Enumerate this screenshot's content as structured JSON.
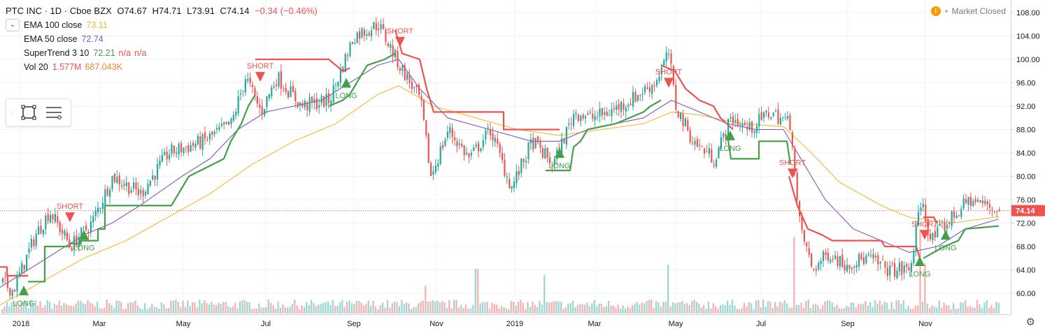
{
  "header": {
    "symbol": "PTC INC · 1D · Cboe BZX",
    "open": "O74.67",
    "high": "H74.71",
    "low": "L73.91",
    "close": "C74.14",
    "change": "−0.34 (−0.46%)"
  },
  "indicators": [
    {
      "name": "EMA 100 close",
      "values": [
        "73.11"
      ],
      "colors": [
        "#f5b931"
      ]
    },
    {
      "name": "EMA 50 close",
      "values": [
        "72.74"
      ],
      "colors": [
        "#7e57c2"
      ]
    },
    {
      "name": "SuperTrend 3 10",
      "values": [
        "72.21",
        "n/a",
        "n/a"
      ],
      "colors": [
        "#43a047",
        "#ef5350",
        "#ef5350"
      ]
    },
    {
      "name": "Vol 20",
      "values": [
        "1.577M",
        "687.043K"
      ],
      "colors": [
        "#ef5350",
        "#f5862f"
      ]
    }
  ],
  "status": {
    "alert": "!",
    "text": "Market Closed"
  },
  "icons": {
    "collapse": "chevron-down-icon",
    "rect": "rectangle-tool-icon",
    "lines": "lines-tool-icon",
    "settings": "gear-icon"
  },
  "chart_data": {
    "type": "candlestick",
    "x_ticks": [
      "2018",
      "Mar",
      "May",
      "Jul",
      "Sep",
      "Nov",
      "2019",
      "Mar",
      "May",
      "Jul",
      "Sep",
      "Nov"
    ],
    "y_ticks": [
      "108.00",
      "104.00",
      "100.00",
      "96.00",
      "92.00",
      "88.00",
      "84.00",
      "80.00",
      "76.00",
      "72.00",
      "68.00",
      "64.00",
      "60.00"
    ],
    "ylim": [
      57.5,
      109
    ],
    "last_price": "74.14",
    "last_price_value": 74.14,
    "colors": {
      "up": "#26a69a",
      "down": "#ef5350",
      "ema100": "#f5b931",
      "ema50": "#7e57c2",
      "st_up": "#43a047",
      "st_down": "#ef5350"
    },
    "price_path": [
      [
        0,
        62
      ],
      [
        18,
        60.5
      ],
      [
        50,
        70
      ],
      [
        70,
        74
      ],
      [
        100,
        68
      ],
      [
        130,
        72
      ],
      [
        160,
        80
      ],
      [
        200,
        77
      ],
      [
        240,
        84
      ],
      [
        290,
        86
      ],
      [
        330,
        89
      ],
      [
        350,
        97
      ],
      [
        372,
        91
      ],
      [
        395,
        97
      ],
      [
        430,
        92
      ],
      [
        470,
        93
      ],
      [
        505,
        104
      ],
      [
        540,
        106
      ],
      [
        570,
        99
      ],
      [
        600,
        93
      ],
      [
        615,
        80
      ],
      [
        640,
        88
      ],
      [
        670,
        83
      ],
      [
        700,
        88
      ],
      [
        730,
        78
      ],
      [
        760,
        86
      ],
      [
        790,
        82
      ],
      [
        820,
        91
      ],
      [
        845,
        90
      ],
      [
        870,
        91
      ],
      [
        900,
        93
      ],
      [
        935,
        96
      ],
      [
        955,
        101
      ],
      [
        965,
        92
      ],
      [
        990,
        86
      ],
      [
        1020,
        83
      ],
      [
        1045,
        90
      ],
      [
        1070,
        88
      ],
      [
        1100,
        91
      ],
      [
        1130,
        89
      ],
      [
        1140,
        73
      ],
      [
        1160,
        64
      ],
      [
        1185,
        67
      ],
      [
        1205,
        65
      ],
      [
        1240,
        66
      ],
      [
        1270,
        64
      ],
      [
        1300,
        64
      ],
      [
        1316,
        76
      ],
      [
        1330,
        69
      ],
      [
        1360,
        73
      ],
      [
        1385,
        76
      ],
      [
        1410,
        75
      ],
      [
        1428,
        74.1
      ]
    ],
    "ema50": [
      [
        0,
        61
      ],
      [
        40,
        64
      ],
      [
        80,
        67
      ],
      [
        120,
        70
      ],
      [
        160,
        72
      ],
      [
        200,
        75
      ],
      [
        260,
        80
      ],
      [
        300,
        83
      ],
      [
        340,
        88
      ],
      [
        380,
        91
      ],
      [
        420,
        92
      ],
      [
        460,
        93
      ],
      [
        500,
        96
      ],
      [
        540,
        99
      ],
      [
        570,
        100
      ],
      [
        600,
        95
      ],
      [
        640,
        90
      ],
      [
        700,
        88
      ],
      [
        760,
        86
      ],
      [
        800,
        86
      ],
      [
        840,
        88
      ],
      [
        880,
        89
      ],
      [
        920,
        90
      ],
      [
        960,
        93
      ],
      [
        1000,
        91
      ],
      [
        1040,
        89
      ],
      [
        1080,
        88
      ],
      [
        1120,
        88
      ],
      [
        1150,
        82
      ],
      [
        1180,
        76
      ],
      [
        1220,
        71
      ],
      [
        1260,
        69
      ],
      [
        1300,
        67
      ],
      [
        1340,
        68
      ],
      [
        1380,
        71
      ],
      [
        1428,
        72.7
      ]
    ],
    "ema100": [
      [
        0,
        58
      ],
      [
        60,
        62
      ],
      [
        120,
        66
      ],
      [
        180,
        69
      ],
      [
        240,
        73
      ],
      [
        300,
        77
      ],
      [
        360,
        82
      ],
      [
        420,
        86
      ],
      [
        480,
        89
      ],
      [
        540,
        94
      ],
      [
        570,
        95.5
      ],
      [
        620,
        92
      ],
      [
        680,
        90
      ],
      [
        740,
        88
      ],
      [
        800,
        87
      ],
      [
        860,
        88
      ],
      [
        920,
        89
      ],
      [
        960,
        91
      ],
      [
        1000,
        90.5
      ],
      [
        1060,
        89
      ],
      [
        1120,
        88.5
      ],
      [
        1160,
        84
      ],
      [
        1200,
        79
      ],
      [
        1260,
        75
      ],
      [
        1300,
        73
      ],
      [
        1360,
        72
      ],
      [
        1428,
        73.1
      ]
    ],
    "supertrend": [
      {
        "color": "#ef5350",
        "points": [
          [
            0,
            64.5
          ],
          [
            10,
            64.5
          ],
          [
            10,
            63
          ],
          [
            40,
            63
          ]
        ]
      },
      {
        "color": "#43a047",
        "points": [
          [
            40,
            62
          ],
          [
            64,
            62
          ],
          [
            64,
            68
          ],
          [
            100,
            68
          ],
          [
            100,
            68.5
          ],
          [
            115,
            68.5
          ],
          [
            115,
            69
          ],
          [
            140,
            69
          ],
          [
            140,
            71
          ],
          [
            150,
            71
          ],
          [
            150,
            75
          ],
          [
            200,
            75
          ],
          [
            220,
            75
          ],
          [
            245,
            75
          ],
          [
            270,
            80
          ],
          [
            320,
            83
          ],
          [
            330,
            86
          ],
          [
            345,
            89
          ],
          [
            355,
            92
          ],
          [
            365,
            94
          ]
        ]
      },
      {
        "color": "#ef5350",
        "points": [
          [
            365,
            100
          ],
          [
            470,
            100
          ],
          [
            490,
            98
          ],
          [
            500,
            98.5
          ]
        ]
      },
      {
        "color": "#43a047",
        "points": [
          [
            470,
            92
          ],
          [
            490,
            93
          ],
          [
            500,
            94
          ],
          [
            515,
            97
          ],
          [
            525,
            99
          ],
          [
            550,
            100
          ],
          [
            565,
            101
          ]
        ]
      },
      {
        "color": "#ef5350",
        "points": [
          [
            565,
            105
          ],
          [
            575,
            101
          ],
          [
            600,
            100
          ],
          [
            610,
            95
          ],
          [
            620,
            91
          ],
          [
            720,
            91
          ],
          [
            720,
            88
          ],
          [
            800,
            88
          ]
        ]
      },
      {
        "color": "#43a047",
        "points": [
          [
            780,
            81
          ],
          [
            815,
            81
          ],
          [
            820,
            85
          ],
          [
            830,
            86
          ],
          [
            840,
            88
          ],
          [
            880,
            89
          ],
          [
            920,
            91
          ],
          [
            930,
            92
          ],
          [
            945,
            93
          ]
        ]
      },
      {
        "color": "#ef5350",
        "points": [
          [
            945,
            99
          ],
          [
            965,
            98
          ],
          [
            980,
            95
          ],
          [
            1000,
            93
          ],
          [
            1020,
            92
          ],
          [
            1030,
            90
          ],
          [
            1048,
            88
          ]
        ]
      },
      {
        "color": "#43a047",
        "points": [
          [
            1040,
            87
          ],
          [
            1045,
            83
          ],
          [
            1085,
            83
          ],
          [
            1085,
            86
          ],
          [
            1125,
            86
          ],
          [
            1130,
            82
          ]
        ]
      },
      {
        "color": "#ef5350",
        "points": [
          [
            1128,
            80
          ],
          [
            1140,
            75
          ],
          [
            1155,
            71
          ],
          [
            1175,
            70
          ],
          [
            1190,
            69
          ],
          [
            1260,
            69
          ],
          [
            1265,
            68
          ],
          [
            1310,
            68
          ],
          [
            1315,
            66
          ]
        ]
      },
      {
        "color": "#ef5350",
        "points": [
          [
            1320,
            73
          ],
          [
            1335,
            73
          ],
          [
            1340,
            72
          ]
        ]
      },
      {
        "color": "#43a047",
        "points": [
          [
            1320,
            66
          ],
          [
            1350,
            68
          ],
          [
            1370,
            69
          ],
          [
            1380,
            71
          ],
          [
            1428,
            71.5
          ]
        ]
      }
    ],
    "signals": [
      {
        "type": "LONG",
        "x": 34,
        "y": 60.5
      },
      {
        "type": "SHORT",
        "x": 100,
        "y": 73
      },
      {
        "type": "LONG",
        "x": 120,
        "y": 70
      },
      {
        "type": "SHORT",
        "x": 372,
        "y": 97
      },
      {
        "type": "LONG",
        "x": 495,
        "y": 96
      },
      {
        "type": "SHORT",
        "x": 572,
        "y": 103
      },
      {
        "type": "LONG",
        "x": 800,
        "y": 84
      },
      {
        "type": "SHORT",
        "x": 956,
        "y": 96
      },
      {
        "type": "LONG",
        "x": 1044,
        "y": 87
      },
      {
        "type": "SHORT",
        "x": 1133,
        "y": 80.5
      },
      {
        "type": "SHORT",
        "x": 1322,
        "y": 70
      },
      {
        "type": "LONG",
        "x": 1315,
        "y": 65.5
      },
      {
        "type": "LONG",
        "x": 1352,
        "y": 70
      }
    ]
  }
}
